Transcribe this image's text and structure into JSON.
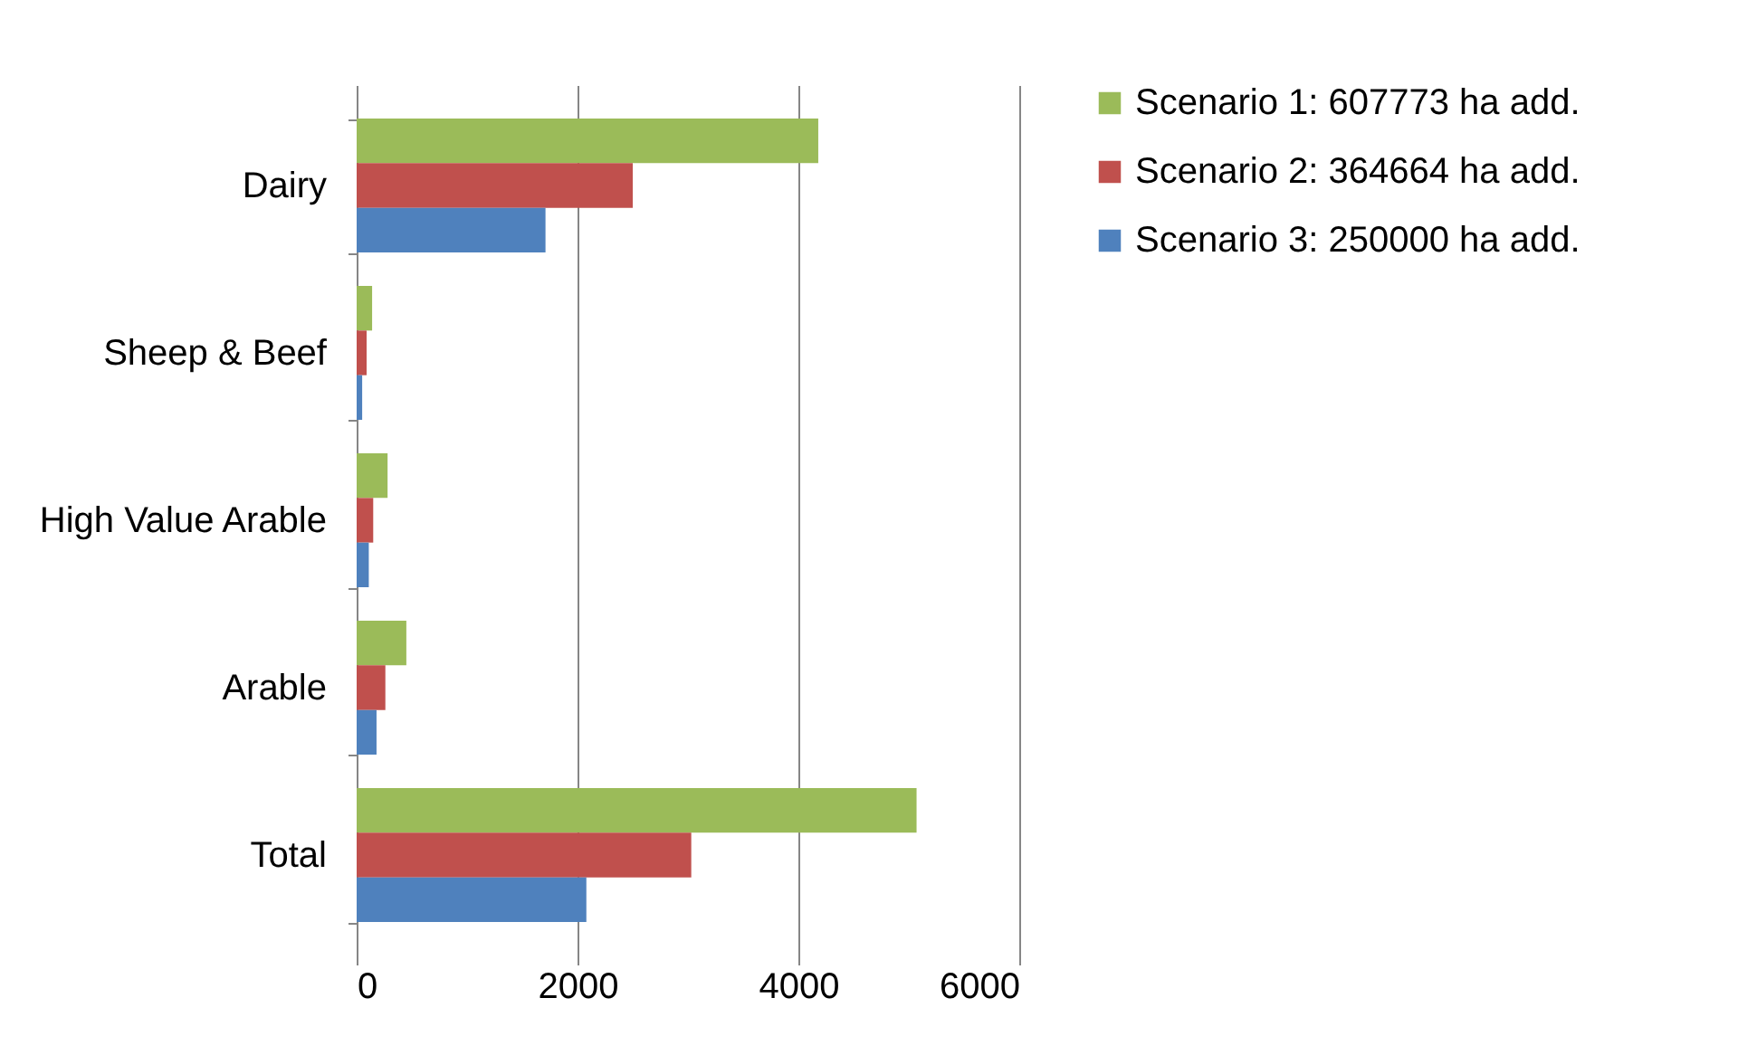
{
  "chart_data": {
    "type": "bar",
    "orientation": "horizontal",
    "categories": [
      "Dairy",
      "Sheep & Beef",
      "High Value Arable",
      "Arable",
      "Total"
    ],
    "series": [
      {
        "name": "Scenario 1: 607773 ha add.",
        "color": "#9bbb59",
        "values": [
          4180,
          140,
          280,
          450,
          5070
        ]
      },
      {
        "name": "Scenario 2: 364664 ha add.",
        "color": "#c0504d",
        "values": [
          2500,
          90,
          150,
          260,
          3030
        ]
      },
      {
        "name": "Scenario 3: 250000 ha add.",
        "color": "#4f81bd",
        "values": [
          1710,
          50,
          110,
          180,
          2080
        ]
      }
    ],
    "xlim": [
      0,
      6000
    ],
    "xticks": [
      0,
      2000,
      4000,
      6000
    ],
    "grid": "x",
    "legend": "right"
  }
}
